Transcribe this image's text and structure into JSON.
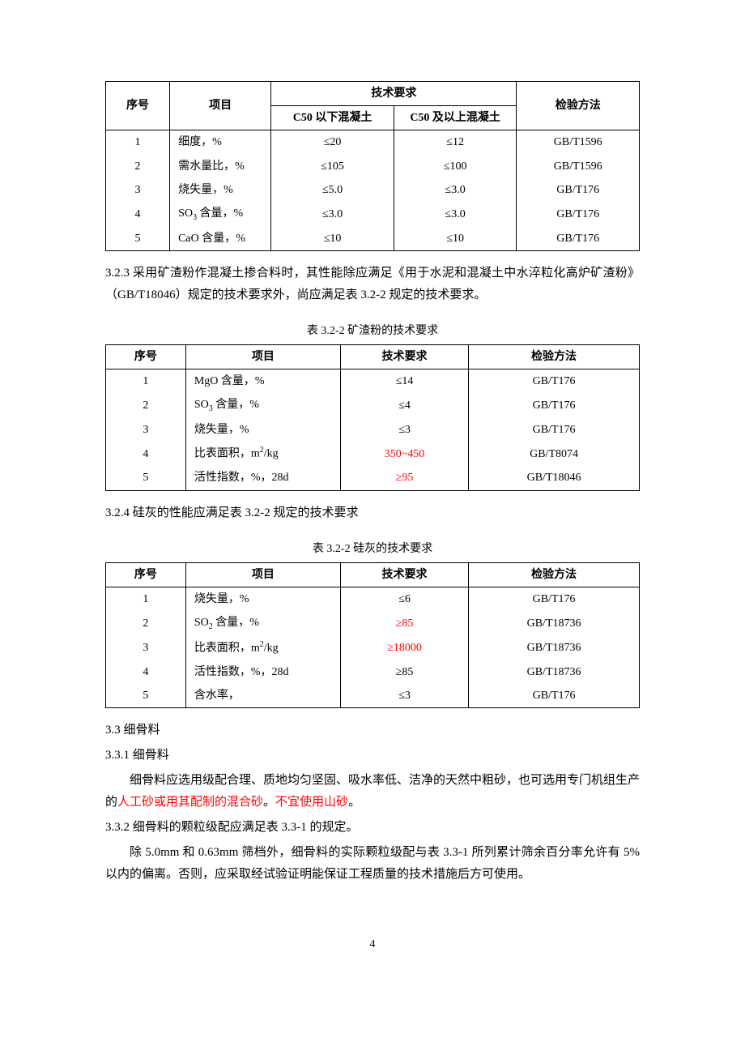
{
  "table1": {
    "headers": {
      "seq": "序号",
      "item": "项目",
      "tech_req": "技术要求",
      "sub_c50_below": "C50 以下混凝土",
      "sub_c50_above": "C50 及以上混凝土",
      "method": "检验方法"
    },
    "rows": [
      {
        "seq": "1",
        "item": "细度，%",
        "v1": "≤20",
        "v2": "≤12",
        "method": "GB/T1596"
      },
      {
        "seq": "2",
        "item": "需水量比，%",
        "v1": "≤105",
        "v2": "≤100",
        "method": "GB/T1596"
      },
      {
        "seq": "3",
        "item": "烧失量，%",
        "v1": "≤5.0",
        "v2": "≤3.0",
        "method": "GB/T176"
      },
      {
        "seq": "4",
        "item_html": "SO<sub>3</sub> 含量，%",
        "v1": "≤3.0",
        "v2": "≤3.0",
        "method": "GB/T176"
      },
      {
        "seq": "5",
        "item": "CaO 含量，%",
        "v1": "≤10",
        "v2": "≤10",
        "method": "GB/T176"
      }
    ],
    "col_widths": [
      "12%",
      "19%",
      "23%",
      "23%",
      "23%"
    ]
  },
  "para_323": "3.2.3 采用矿渣粉作混凝土掺合料时，其性能除应满足《用于水泥和混凝土中水淬粒化高炉矿渣粉》（GB/T18046）规定的技术要求外，尚应满足表 3.2-2 规定的技术要求。",
  "table2": {
    "caption": "表 3.2-2  矿渣粉的技术要求",
    "headers": {
      "seq": "序号",
      "item": "项目",
      "req": "技术要求",
      "method": "检验方法"
    },
    "rows": [
      {
        "seq": "1",
        "item": "MgO 含量，%",
        "req": "≤14",
        "red": false,
        "method": "GB/T176"
      },
      {
        "seq": "2",
        "item_html": "SO<sub>3</sub> 含量，%",
        "req": "≤4",
        "red": false,
        "method": "GB/T176"
      },
      {
        "seq": "3",
        "item": "烧失量，%",
        "req": "≤3",
        "red": false,
        "method": "GB/T176"
      },
      {
        "seq": "4",
        "item_html": "比表面积，m<sup>2</sup>/kg",
        "req": "350~450",
        "red": true,
        "method": "GB/T8074"
      },
      {
        "seq": "5",
        "item": "活性指数，%，28d",
        "req": "≥95",
        "red": true,
        "method": "GB/T18046"
      }
    ],
    "col_widths": [
      "15%",
      "29%",
      "24%",
      "32%"
    ]
  },
  "para_324": "3.2.4 硅灰的性能应满足表 3.2-2 规定的技术要求",
  "table3": {
    "caption": "表 3.2-2  硅灰的技术要求",
    "headers": {
      "seq": "序号",
      "item": "项目",
      "req": "技术要求",
      "method": "检验方法"
    },
    "rows": [
      {
        "seq": "1",
        "item": "烧失量，%",
        "req": "≤6",
        "red": false,
        "method": "GB/T176"
      },
      {
        "seq": "2",
        "item_html": "SO<sub>2</sub> 含量，%",
        "req": "≥85",
        "red": true,
        "method": "GB/T18736"
      },
      {
        "seq": "3",
        "item_html": "比表面积，m<sup>2</sup>/kg",
        "req": "≥18000",
        "red": true,
        "method": "GB/T18736"
      },
      {
        "seq": "4",
        "item": "活性指数，%，28d",
        "req": "≥85",
        "red": false,
        "method": "GB/T18736"
      },
      {
        "seq": "5",
        "item": "含水率，",
        "req": "≤3",
        "red": false,
        "method": "GB/T176"
      }
    ],
    "col_widths": [
      "15%",
      "29%",
      "24%",
      "32%"
    ]
  },
  "sec33": {
    "title": "3.3 细骨料",
    "p1": "3.3.1 细骨料",
    "p2a": "细骨料应选用级配合理、质地均匀坚固、吸水率低、洁净的天然中粗砂，也可选用专门机组生产的",
    "p2_red1": "人工砂或用其配制的混合砂",
    "p2_mid": "。",
    "p2_red2": "不宜使用山砂",
    "p2_end": "。",
    "p3": "3.3.2 细骨料的颗粒级配应满足表 3.3-1 的规定。",
    "p4": "除 5.0mm 和 0.63mm 筛档外，细骨料的实际颗粒级配与表 3.3-1 所列累计筛余百分率允许有 5%以内的偏离。否则，应采取经试验证明能保证工程质量的技术措施后方可使用。"
  },
  "page_number": "4",
  "colors": {
    "text": "#000000",
    "highlight": "#ff0000",
    "background": "#ffffff"
  }
}
